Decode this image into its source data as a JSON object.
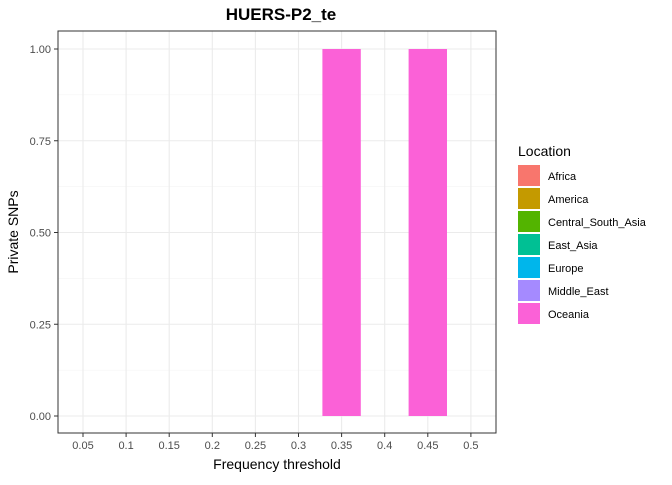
{
  "chart_data": {
    "type": "bar",
    "title": "HUERS-P2_te",
    "xlabel": "Frequency threshold",
    "ylabel": "Private SNPs",
    "categories": [
      "0.05",
      "0.1",
      "0.15",
      "0.2",
      "0.25",
      "0.3",
      "0.35",
      "0.4",
      "0.45",
      "0.5"
    ],
    "ylim": [
      0,
      1
    ],
    "yticks": [
      0.0,
      0.25,
      0.5,
      0.75,
      1.0
    ],
    "ytick_labels": [
      "0.00",
      "0.25",
      "0.50",
      "0.75",
      "1.00"
    ],
    "grid": true,
    "legend_position": "right",
    "legend": {
      "title": "Location",
      "entries": [
        {
          "name": "Africa",
          "color": "#F8766D"
        },
        {
          "name": "America",
          "color": "#C49A00"
        },
        {
          "name": "Central_South_Asia",
          "color": "#53B400"
        },
        {
          "name": "East_Asia",
          "color": "#00C094"
        },
        {
          "name": "Europe",
          "color": "#00B6EB"
        },
        {
          "name": "Middle_East",
          "color": "#A58AFF"
        },
        {
          "name": "Oceania",
          "color": "#FB61D7"
        }
      ]
    },
    "series": [
      {
        "name": "Oceania",
        "color": "#FB61D7",
        "values": [
          0,
          0,
          0,
          0,
          0,
          0,
          1,
          0,
          1,
          0
        ]
      }
    ]
  }
}
